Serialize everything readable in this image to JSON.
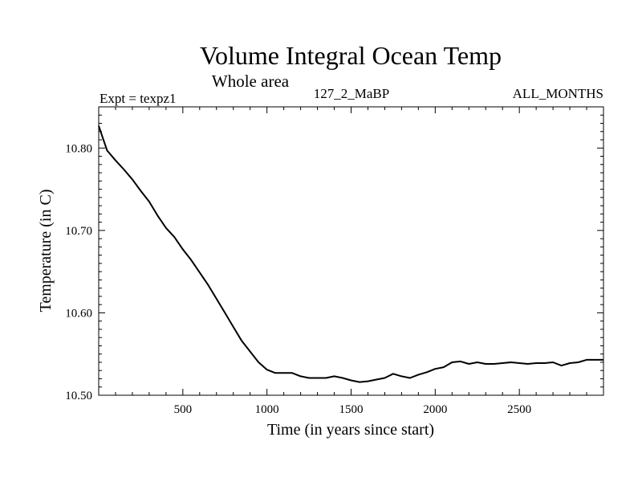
{
  "chart_data": {
    "type": "line",
    "title": "Volume Integral Ocean Temp",
    "subtitle": "Whole area",
    "annotations": {
      "left": "Expt = texpz1",
      "center": "127_2_MaBP",
      "right": "ALL_MONTHS"
    },
    "xlabel": "Time (in years since start)",
    "ylabel": "Temperature (in C)",
    "xlim": [
      0,
      3000
    ],
    "ylim": [
      10.5,
      10.85
    ],
    "xticks": [
      500,
      1000,
      1500,
      2000,
      2500
    ],
    "xtick_labels": [
      "500",
      "1000",
      "1500",
      "2000",
      "2500"
    ],
    "yticks": [
      10.5,
      10.6,
      10.7,
      10.8
    ],
    "ytick_labels": [
      "10.50",
      "10.60",
      "10.70",
      "10.80"
    ],
    "grid": false,
    "series": [
      {
        "x": [
          0,
          25,
          50,
          100,
          150,
          200,
          250,
          300,
          350,
          400,
          450,
          500,
          550,
          600,
          650,
          700,
          750,
          800,
          850,
          900,
          950,
          1000,
          1050,
          1100,
          1150,
          1200,
          1250,
          1300,
          1350,
          1400,
          1450,
          1500,
          1550,
          1600,
          1650,
          1700,
          1750,
          1800,
          1850,
          1900,
          1950,
          2000,
          2050,
          2100,
          2150,
          2200,
          2250,
          2300,
          2350,
          2400,
          2450,
          2500,
          2550,
          2600,
          2650,
          2700,
          2750,
          2800,
          2850,
          2900,
          2950,
          3000
        ],
        "y": [
          10.827,
          10.812,
          10.797,
          10.785,
          10.774,
          10.762,
          10.748,
          10.735,
          10.718,
          10.703,
          10.692,
          10.677,
          10.664,
          10.649,
          10.634,
          10.617,
          10.6,
          10.583,
          10.566,
          10.553,
          10.54,
          10.531,
          10.527,
          10.527,
          10.527,
          10.523,
          10.521,
          10.521,
          10.521,
          10.523,
          10.521,
          10.518,
          10.516,
          10.517,
          10.519,
          10.521,
          10.526,
          10.523,
          10.521,
          10.525,
          10.528,
          10.532,
          10.534,
          10.54,
          10.541,
          10.538,
          10.54,
          10.538,
          10.538,
          10.539,
          10.54,
          10.539,
          10.538,
          10.539,
          10.539,
          10.54,
          10.536,
          10.539,
          10.54,
          10.543,
          10.543,
          10.543
        ]
      }
    ],
    "line_color": "#000000"
  }
}
